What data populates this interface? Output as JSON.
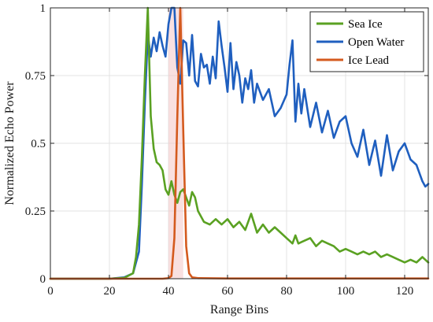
{
  "chart_data": {
    "type": "line",
    "xlabel": "Range Bins",
    "ylabel": "Normalized Echo Power",
    "xlim": [
      0,
      128
    ],
    "ylim": [
      0,
      1
    ],
    "xticks": [
      0,
      20,
      40,
      60,
      80,
      100,
      120
    ],
    "yticks": [
      0,
      0.25,
      0.5,
      0.75,
      1
    ],
    "ytick_labels": [
      "0",
      "0.25",
      "0.5",
      "0.75",
      "1"
    ],
    "grid": true,
    "legend_position": "top-right",
    "highlight_band": {
      "x": [
        40,
        45
      ],
      "color": "#f4c6c6"
    },
    "series": [
      {
        "name": "Sea Ice",
        "color": "#5aa122",
        "x": [
          0,
          5,
          10,
          15,
          20,
          25,
          28,
          29,
          30,
          31,
          32,
          33,
          34,
          35,
          36,
          37,
          38,
          39,
          40,
          41,
          42,
          43,
          44,
          45,
          46,
          47,
          48,
          49,
          50,
          52,
          54,
          56,
          57,
          58,
          60,
          62,
          64,
          66,
          68,
          70,
          72,
          74,
          76,
          78,
          80,
          81,
          82,
          83,
          84,
          86,
          88,
          90,
          92,
          94,
          96,
          98,
          100,
          102,
          104,
          106,
          108,
          110,
          112,
          114,
          116,
          118,
          120,
          122,
          124,
          126,
          127,
          128
        ],
        "y": [
          0,
          0,
          0,
          0,
          0,
          0.003,
          0.02,
          0.08,
          0.2,
          0.45,
          0.75,
          1.0,
          0.6,
          0.48,
          0.43,
          0.42,
          0.4,
          0.33,
          0.31,
          0.36,
          0.31,
          0.28,
          0.32,
          0.33,
          0.3,
          0.27,
          0.32,
          0.3,
          0.25,
          0.21,
          0.2,
          0.22,
          0.21,
          0.2,
          0.22,
          0.19,
          0.21,
          0.18,
          0.24,
          0.17,
          0.2,
          0.17,
          0.19,
          0.17,
          0.15,
          0.14,
          0.13,
          0.16,
          0.13,
          0.14,
          0.15,
          0.12,
          0.14,
          0.13,
          0.12,
          0.1,
          0.11,
          0.1,
          0.09,
          0.1,
          0.09,
          0.1,
          0.08,
          0.09,
          0.08,
          0.07,
          0.06,
          0.07,
          0.06,
          0.08,
          0.07,
          0.06
        ]
      },
      {
        "name": "Open Water",
        "color": "#1f5fbf",
        "x": [
          0,
          10,
          20,
          25,
          28,
          30,
          31,
          32,
          33,
          34,
          35,
          36,
          37,
          38,
          39,
          40,
          41,
          42,
          43,
          44,
          45,
          46,
          47,
          48,
          49,
          50,
          51,
          52,
          53,
          54,
          55,
          56,
          57,
          58,
          59,
          60,
          61,
          62,
          63,
          64,
          65,
          66,
          67,
          68,
          69,
          70,
          72,
          74,
          76,
          78,
          80,
          81,
          82,
          83,
          84,
          85,
          86,
          88,
          90,
          92,
          94,
          96,
          98,
          100,
          102,
          104,
          106,
          108,
          110,
          112,
          114,
          116,
          118,
          120,
          122,
          124,
          126,
          127,
          128
        ],
        "y": [
          0,
          0,
          0,
          0.005,
          0.02,
          0.1,
          0.35,
          0.65,
          0.9,
          0.82,
          0.89,
          0.84,
          0.91,
          0.86,
          0.82,
          0.94,
          1.0,
          1.0,
          0.78,
          0.72,
          0.88,
          0.87,
          0.75,
          0.9,
          0.73,
          0.71,
          0.83,
          0.78,
          0.79,
          0.72,
          0.82,
          0.74,
          0.95,
          0.86,
          0.78,
          0.69,
          0.87,
          0.7,
          0.8,
          0.75,
          0.65,
          0.74,
          0.7,
          0.77,
          0.65,
          0.72,
          0.66,
          0.7,
          0.6,
          0.63,
          0.68,
          0.79,
          0.88,
          0.58,
          0.72,
          0.61,
          0.7,
          0.56,
          0.65,
          0.54,
          0.62,
          0.52,
          0.58,
          0.6,
          0.5,
          0.45,
          0.55,
          0.42,
          0.51,
          0.38,
          0.53,
          0.4,
          0.47,
          0.5,
          0.44,
          0.42,
          0.36,
          0.34,
          0.35
        ]
      },
      {
        "name": "Ice Lead",
        "color": "#d45a1e",
        "x": [
          0,
          20,
          30,
          38,
          40,
          41,
          42,
          43,
          44,
          45,
          46,
          47,
          48,
          50,
          60,
          80,
          100,
          120,
          128
        ],
        "y": [
          0,
          0,
          0,
          0,
          0.002,
          0.01,
          0.15,
          0.6,
          1.0,
          0.55,
          0.12,
          0.02,
          0.005,
          0.002,
          0.001,
          0.001,
          0.001,
          0.001,
          0.001
        ]
      }
    ]
  }
}
